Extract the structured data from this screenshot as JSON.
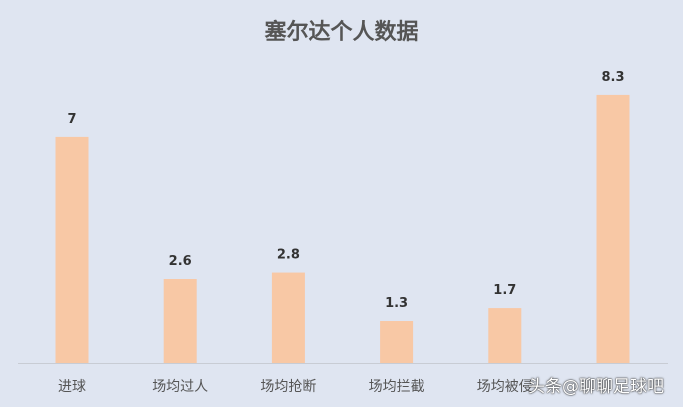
{
  "chart_data": {
    "type": "bar",
    "title": "塞尔达个人数据",
    "categories": [
      "进球",
      "场均过人",
      "场均抢断",
      "场均拦截",
      "场均被侵",
      ""
    ],
    "values": [
      7,
      2.6,
      2.8,
      1.3,
      1.7,
      8.3
    ],
    "data_labels": [
      "7",
      "2.6",
      "2.8",
      "1.3",
      "1.7",
      "8.3"
    ],
    "ylim": [
      0,
      9
    ],
    "grid": false,
    "bar_color": "#f8c8a5",
    "background": "#dfe5f1"
  },
  "watermark": "头条@聊聊足球吧"
}
